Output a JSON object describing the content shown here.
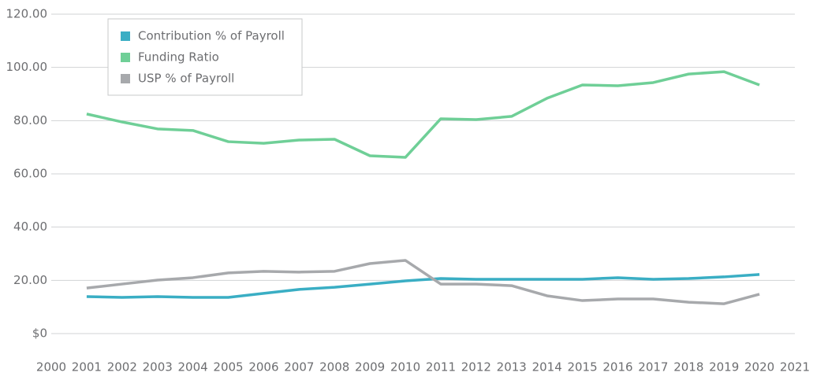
{
  "chart_data": {
    "type": "line",
    "x": [
      2001,
      2002,
      2003,
      2004,
      2005,
      2006,
      2007,
      2008,
      2009,
      2010,
      2011,
      2012,
      2013,
      2014,
      2015,
      2016,
      2017,
      2018,
      2019,
      2020
    ],
    "series": [
      {
        "name": "Contribution % of Payroll",
        "color": "#3aaec4",
        "values": [
          13.9,
          13.6,
          13.9,
          13.6,
          13.6,
          15.1,
          16.6,
          17.4,
          18.6,
          19.8,
          20.7,
          20.4,
          20.4,
          20.4,
          20.4,
          21.0,
          20.4,
          20.7,
          21.3,
          22.2
        ]
      },
      {
        "name": "Funding Ratio",
        "color": "#6fcf97",
        "values": [
          82.5,
          79.5,
          76.9,
          76.3,
          72.1,
          71.5,
          72.7,
          73.0,
          66.8,
          66.2,
          80.7,
          80.4,
          81.6,
          88.4,
          93.4,
          93.1,
          94.3,
          97.5,
          98.4,
          93.4
        ]
      },
      {
        "name": "USP % of Payroll",
        "color": "#a7a9ac",
        "values": [
          17.1,
          18.6,
          20.1,
          21.0,
          22.8,
          23.4,
          23.1,
          23.4,
          26.3,
          27.5,
          18.6,
          18.6,
          18.0,
          14.2,
          12.4,
          13.0,
          13.0,
          11.8,
          11.2,
          14.8
        ]
      }
    ],
    "xlim": [
      2000,
      2021
    ],
    "xticks": [
      2000,
      2001,
      2002,
      2003,
      2004,
      2005,
      2006,
      2007,
      2008,
      2009,
      2010,
      2011,
      2012,
      2013,
      2014,
      2015,
      2016,
      2017,
      2018,
      2019,
      2020,
      2021
    ],
    "ylim": [
      0,
      120
    ],
    "yticks": [
      {
        "value": 0,
        "label": "$0"
      },
      {
        "value": 20,
        "label": "20.00"
      },
      {
        "value": 40,
        "label": "40.00"
      },
      {
        "value": 60,
        "label": "60.00"
      },
      {
        "value": 80,
        "label": "80.00"
      },
      {
        "value": 100,
        "label": "100.00"
      },
      {
        "value": 120,
        "label": "120.00"
      }
    ],
    "grid": true,
    "legend": "top-left"
  }
}
